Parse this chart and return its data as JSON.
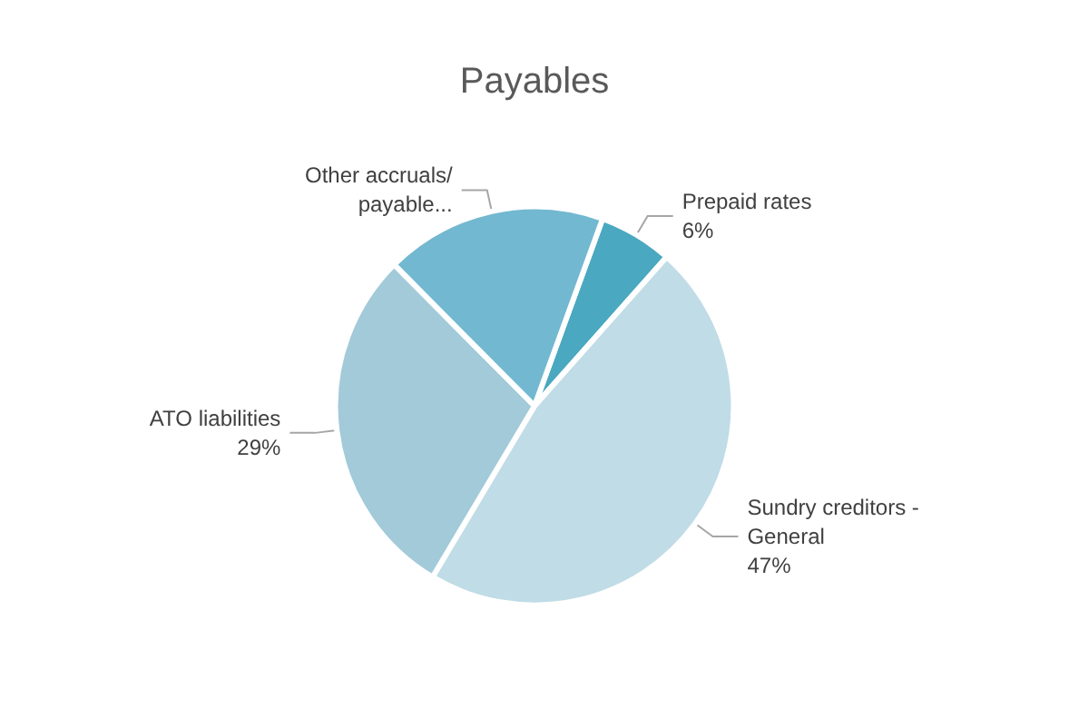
{
  "chart_data": {
    "type": "pie",
    "title": "Payables",
    "categories": [
      "Prepaid rates",
      "Sundry creditors - General",
      "ATO liabilities",
      "Other accruals/payable..."
    ],
    "values": [
      6,
      47,
      29,
      18
    ],
    "colors": [
      "#4aa8c0",
      "#c0dce6",
      "#a2cad9",
      "#72b8d0"
    ],
    "value_labels": [
      "6%",
      "47%",
      "29%",
      null
    ]
  }
}
